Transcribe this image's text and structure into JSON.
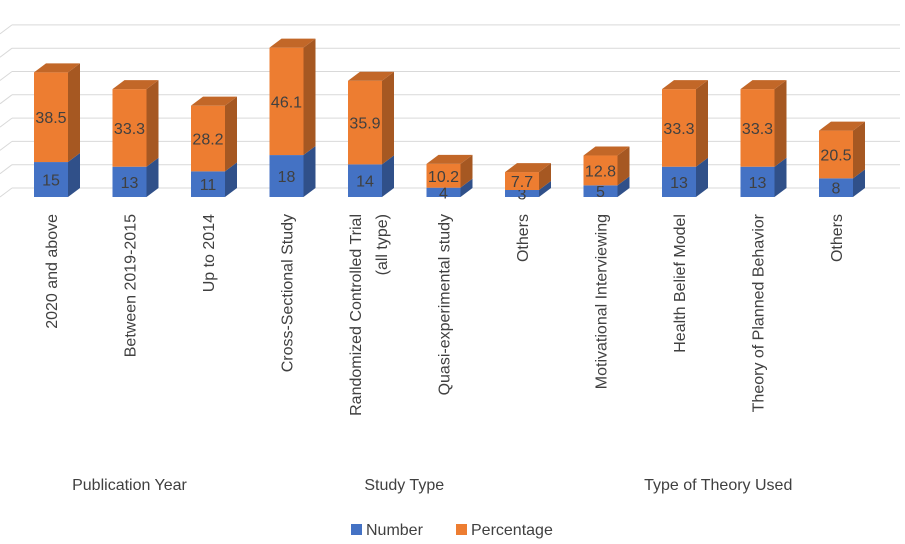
{
  "chart_data": {
    "type": "bar",
    "stacked": true,
    "three_d": true,
    "categories": [
      "2020 and above",
      "Between 2019-2015",
      "Up to 2014",
      "Cross-Sectional Study",
      "Randomized Controlled Trial (all type)",
      "Quasi-experimental study",
      "Others",
      "Motivational Interviewing",
      "Health Belief Model",
      "Theory of Planned Behavior",
      "Others"
    ],
    "groups": [
      {
        "label": "Publication Year",
        "categories": [
          0,
          1,
          2
        ]
      },
      {
        "label": "Study Type",
        "categories": [
          3,
          4,
          5,
          6
        ]
      },
      {
        "label": "Type of Theory Used",
        "categories": [
          7,
          8,
          9,
          10
        ]
      }
    ],
    "series": [
      {
        "name": "Number",
        "color": "#4472C4",
        "values": [
          15,
          13,
          11,
          18,
          14,
          4,
          3,
          5,
          13,
          13,
          8
        ]
      },
      {
        "name": "Percentage",
        "color": "#ED7D31",
        "values": [
          38.5,
          33.3,
          28.2,
          46.1,
          35.9,
          10.2,
          7.7,
          12.8,
          33.3,
          33.3,
          20.5
        ]
      }
    ],
    "ylim": [
      0,
      70
    ],
    "grid": true,
    "legend": "bottom",
    "data_labels": true
  }
}
